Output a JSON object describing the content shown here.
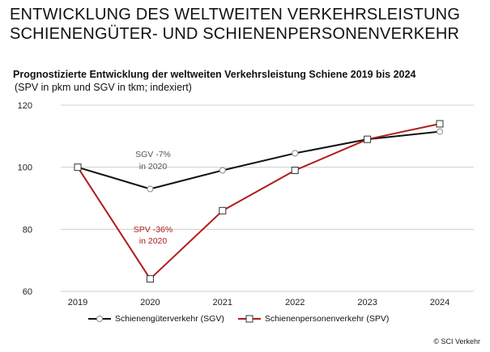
{
  "header": {
    "title_line1": "ENTWICKLUNG DES WELTWEITEN VERKEHRSLEISTUNG",
    "title_line2": "SCHIENENGÜTER- UND SCHIENENPERSONENVERKEHR",
    "subtitle": "Prognostizierte Entwicklung der weltweiten Verkehrsleistung Schiene 2019 bis 2024",
    "subtitle_note": "(SPV in pkm und SGV in tkm; indexiert)"
  },
  "chart_data": {
    "type": "line",
    "x": [
      "2019",
      "2020",
      "2021",
      "2022",
      "2023",
      "2024"
    ],
    "ylim": [
      60,
      120
    ],
    "yticks": [
      60,
      80,
      100,
      120
    ],
    "grid": true,
    "legend_position": "bottom",
    "series": [
      {
        "name": "Schienengüterverkehr (SGV)",
        "color": "#111111",
        "marker": "circle",
        "values": [
          100,
          93,
          99,
          104.5,
          109,
          111.5
        ]
      },
      {
        "name": "Schienenpersonenverkehr (SPV)",
        "color": "#b01c1c",
        "marker": "square",
        "values": [
          100,
          64,
          86,
          99,
          109,
          114
        ]
      }
    ],
    "annotations": [
      {
        "series": 0,
        "line1": "SGV -7%",
        "line2": "in 2020",
        "color": "#555555"
      },
      {
        "series": 1,
        "line1": "SPV -36%",
        "line2": "in 2020",
        "color": "#b01c1c"
      }
    ]
  },
  "credit": "© SCI Verkehr"
}
